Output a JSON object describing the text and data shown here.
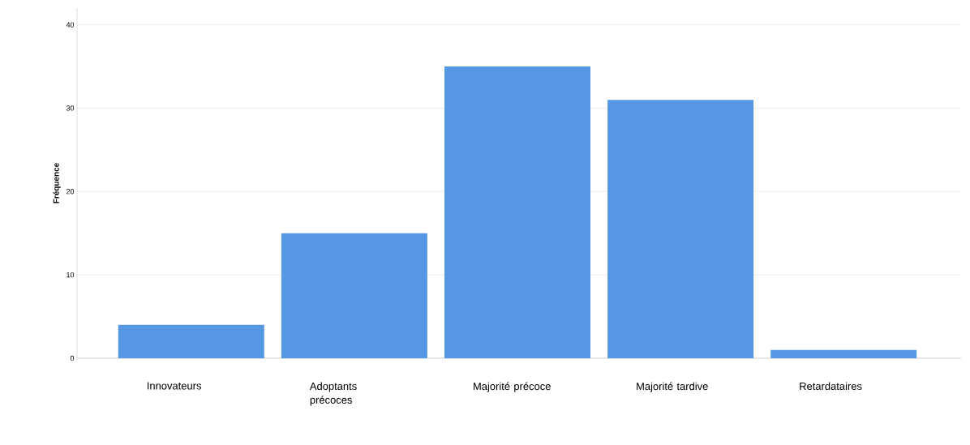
{
  "chart_data": {
    "type": "bar",
    "ylabel": "Fréquence",
    "categories": [
      "Innovateurs",
      "Adoptants précoces",
      "Majorité précoce",
      "Majorité tardive",
      "Retardataires"
    ],
    "values": [
      4,
      15,
      35,
      31,
      1
    ],
    "color": "#5697e4",
    "ylim": [
      0,
      42
    ],
    "yticks": [
      0,
      10,
      20,
      30,
      40
    ],
    "grid": "y"
  }
}
